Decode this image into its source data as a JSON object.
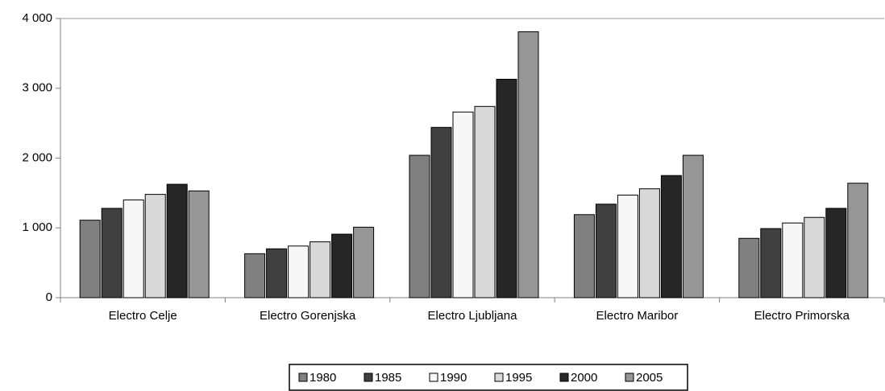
{
  "chart_data": {
    "type": "bar",
    "categories": [
      "Electro Celje",
      "Electro Gorenjska",
      "Electro Ljubljana",
      "Electro Maribor",
      "Electro Primorska"
    ],
    "series": [
      {
        "name": "1980",
        "color": "#808080",
        "values": [
          1110,
          630,
          2040,
          1190,
          850
        ]
      },
      {
        "name": "1985",
        "color": "#404040",
        "values": [
          1280,
          700,
          2440,
          1340,
          990
        ]
      },
      {
        "name": "1990",
        "color": "#f7f7f7",
        "values": [
          1400,
          740,
          2660,
          1470,
          1070
        ]
      },
      {
        "name": "1995",
        "color": "#d9d9d9",
        "values": [
          1480,
          800,
          2740,
          1560,
          1150
        ]
      },
      {
        "name": "2000",
        "color": "#262626",
        "values": [
          1625,
          910,
          3130,
          1750,
          1280
        ]
      },
      {
        "name": "2005",
        "color": "#969696",
        "values": [
          1530,
          1010,
          3810,
          2040,
          1640
        ]
      }
    ],
    "ylim": [
      0,
      4000
    ],
    "yticks": [
      0,
      {
        "value": 1000,
        "label": "1 000"
      },
      {
        "value": 2000,
        "label": "2 000"
      },
      {
        "value": 3000,
        "label": "3 000"
      },
      {
        "value": 4000,
        "label": "4 000"
      }
    ],
    "legend": "bottom"
  }
}
